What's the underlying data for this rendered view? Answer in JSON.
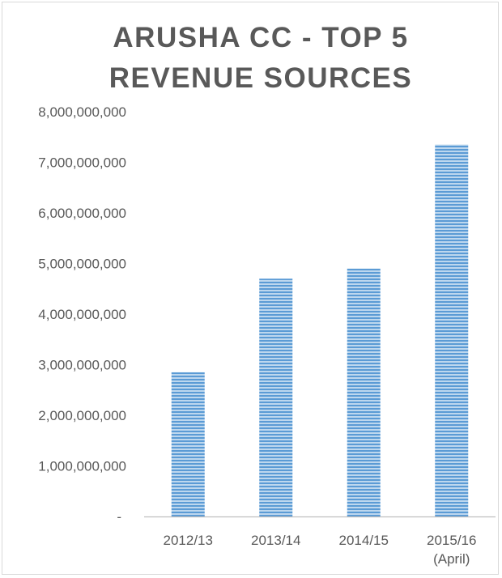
{
  "chart_data": {
    "type": "bar",
    "title": "ARUSHA CC - TOP 5\nREVENUE SOURCES",
    "categories": [
      [
        "2012/13"
      ],
      [
        "2013/14"
      ],
      [
        "2014/15"
      ],
      [
        "2015/16",
        "(April)"
      ]
    ],
    "values": [
      2850000000,
      4700000000,
      4900000000,
      7350000000
    ],
    "ylim": [
      0,
      8000000000
    ],
    "yticks": [
      {
        "value": 0,
        "label": "-"
      },
      {
        "value": 1000000000,
        "label": "1,000,000,000"
      },
      {
        "value": 2000000000,
        "label": "2,000,000,000"
      },
      {
        "value": 3000000000,
        "label": "3,000,000,000"
      },
      {
        "value": 4000000000,
        "label": "4,000,000,000"
      },
      {
        "value": 5000000000,
        "label": "5,000,000,000"
      },
      {
        "value": 6000000000,
        "label": "6,000,000,000"
      },
      {
        "value": 7000000000,
        "label": "7,000,000,000"
      },
      {
        "value": 8000000000,
        "label": "8,000,000,000"
      }
    ],
    "grid": false,
    "legend": "none",
    "colors": {
      "bar_stripe_dark": "#5b9bd5",
      "bar_stripe_light": "#bdd7ee",
      "axis": "#bfbfbf",
      "text": "#595959"
    }
  }
}
